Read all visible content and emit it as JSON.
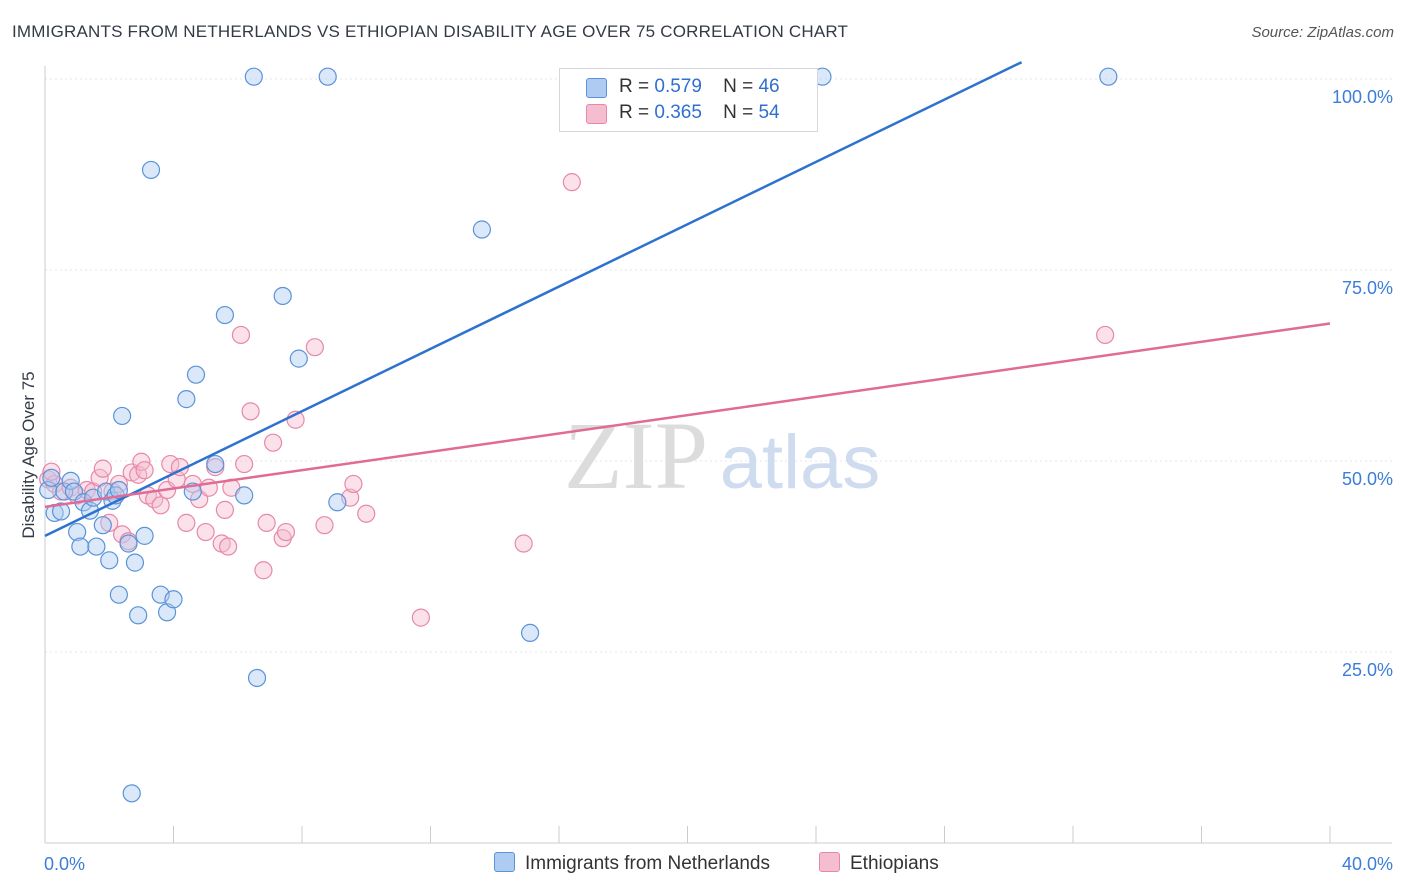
{
  "title": "IMMIGRANTS FROM NETHERLANDS VS ETHIOPIAN DISABILITY AGE OVER 75 CORRELATION CHART",
  "source": "Source: ZipAtlas.com",
  "watermark": {
    "zip": "ZIP",
    "atlas": "atlas"
  },
  "legend": {
    "r_label": "R =",
    "n_label": "N =",
    "rows": [
      {
        "r": "0.579",
        "n": "46"
      },
      {
        "r": "0.365",
        "n": "54"
      }
    ]
  },
  "colors": {
    "blue_fill": "#aecbf2",
    "blue_stroke": "#5b93d8",
    "blue_line": "#2d72cf",
    "pink_fill": "#f5bdd0",
    "pink_stroke": "#e888a8",
    "pink_line": "#e06b95",
    "tick_label": "#3b7dd8",
    "grid": "#e2e5ea"
  },
  "chart_data": {
    "type": "scatter",
    "title": "IMMIGRANTS FROM NETHERLANDS VS ETHIOPIAN DISABILITY AGE OVER 75 CORRELATION CHART",
    "xlabel": "",
    "ylabel": "Disability Age Over 75",
    "xlim": [
      0,
      40
    ],
    "ylim": [
      0,
      105
    ],
    "x_tick_labels": [
      "0.0%",
      "40.0%"
    ],
    "y_ticks": [
      25,
      50,
      75,
      100
    ],
    "y_tick_labels": [
      "25.0%",
      "50.0%",
      "75.0%",
      "100.0%"
    ],
    "legend_position": "top-center",
    "series": [
      {
        "name": "Immigrants from Netherlands",
        "color": "blue",
        "trend": [
          [
            0,
            40.2
          ],
          [
            30.4,
            102.2
          ]
        ],
        "points": [
          [
            0.1,
            46.2
          ],
          [
            0.3,
            43.2
          ],
          [
            0.5,
            43.4
          ],
          [
            0.6,
            46.0
          ],
          [
            0.8,
            47.4
          ],
          [
            0.9,
            46.0
          ],
          [
            1.0,
            40.7
          ],
          [
            1.1,
            38.8
          ],
          [
            1.2,
            44.6
          ],
          [
            1.4,
            43.5
          ],
          [
            1.5,
            45.2
          ],
          [
            1.6,
            38.8
          ],
          [
            1.8,
            41.6
          ],
          [
            1.9,
            46.0
          ],
          [
            2.0,
            37.0
          ],
          [
            2.1,
            44.8
          ],
          [
            2.2,
            45.5
          ],
          [
            2.3,
            46.2
          ],
          [
            2.3,
            32.5
          ],
          [
            2.4,
            55.9
          ],
          [
            2.6,
            39.2
          ],
          [
            2.8,
            36.7
          ],
          [
            2.9,
            29.8
          ],
          [
            3.1,
            40.2
          ],
          [
            3.3,
            88.1
          ],
          [
            3.6,
            32.5
          ],
          [
            3.8,
            30.2
          ],
          [
            4.0,
            31.9
          ],
          [
            4.4,
            58.1
          ],
          [
            4.6,
            46.0
          ],
          [
            4.7,
            61.3
          ],
          [
            5.3,
            49.6
          ],
          [
            5.6,
            69.1
          ],
          [
            6.2,
            45.5
          ],
          [
            6.5,
            100.3
          ],
          [
            6.6,
            21.6
          ],
          [
            7.4,
            71.6
          ],
          [
            7.9,
            63.4
          ],
          [
            8.8,
            100.3
          ],
          [
            9.1,
            44.6
          ],
          [
            13.6,
            80.3
          ],
          [
            15.1,
            27.5
          ],
          [
            24.2,
            100.3
          ],
          [
            33.1,
            100.3
          ],
          [
            2.7,
            6.5
          ],
          [
            0.2,
            47.8
          ]
        ]
      },
      {
        "name": "Ethiopians",
        "color": "pink",
        "trend": [
          [
            0,
            44.0
          ],
          [
            40,
            68.0
          ]
        ],
        "points": [
          [
            0.1,
            47.6
          ],
          [
            0.3,
            47.0
          ],
          [
            0.5,
            46.0
          ],
          [
            0.8,
            46.5
          ],
          [
            1.0,
            45.5
          ],
          [
            1.3,
            46.2
          ],
          [
            1.5,
            46.0
          ],
          [
            1.7,
            47.8
          ],
          [
            1.8,
            49.0
          ],
          [
            2.0,
            41.9
          ],
          [
            2.1,
            46.0
          ],
          [
            2.3,
            47.0
          ],
          [
            2.4,
            40.4
          ],
          [
            2.6,
            39.5
          ],
          [
            2.7,
            48.5
          ],
          [
            2.9,
            48.2
          ],
          [
            3.0,
            49.9
          ],
          [
            3.1,
            48.8
          ],
          [
            3.2,
            45.5
          ],
          [
            3.4,
            45.0
          ],
          [
            3.6,
            44.2
          ],
          [
            3.8,
            46.2
          ],
          [
            3.9,
            49.6
          ],
          [
            4.1,
            47.6
          ],
          [
            4.2,
            49.2
          ],
          [
            4.4,
            41.9
          ],
          [
            4.6,
            47.0
          ],
          [
            4.8,
            45.0
          ],
          [
            5.0,
            40.7
          ],
          [
            5.1,
            46.5
          ],
          [
            5.3,
            49.2
          ],
          [
            5.5,
            39.2
          ],
          [
            5.6,
            43.6
          ],
          [
            5.7,
            38.8
          ],
          [
            5.8,
            46.5
          ],
          [
            6.1,
            66.5
          ],
          [
            6.2,
            49.6
          ],
          [
            6.4,
            56.5
          ],
          [
            6.8,
            35.7
          ],
          [
            6.9,
            41.9
          ],
          [
            7.1,
            52.4
          ],
          [
            7.4,
            39.9
          ],
          [
            7.5,
            40.7
          ],
          [
            7.8,
            55.4
          ],
          [
            8.4,
            64.9
          ],
          [
            8.7,
            41.6
          ],
          [
            9.5,
            45.2
          ],
          [
            9.6,
            47.0
          ],
          [
            10.0,
            43.1
          ],
          [
            11.7,
            29.5
          ],
          [
            14.9,
            39.2
          ],
          [
            16.4,
            86.5
          ],
          [
            33.0,
            66.5
          ],
          [
            0.2,
            48.6
          ]
        ]
      }
    ]
  }
}
